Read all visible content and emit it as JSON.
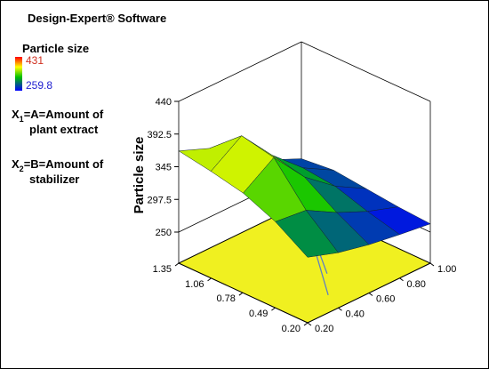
{
  "header": {
    "title": "Design-Expert® Software"
  },
  "legend": {
    "title": "Particle size",
    "max": 431,
    "min": 259.8,
    "max_color": "#d03020",
    "min_color": "#2020d0"
  },
  "factors": [
    {
      "symbol": "X",
      "sub": "1",
      "line1": "=A=Amount of",
      "line2": "plant extract"
    },
    {
      "symbol": "X",
      "sub": "2",
      "line1": "=B=Amount of",
      "line2": "stabilizer"
    }
  ],
  "chart_data": {
    "type": "surface",
    "zlabel": "Particle size",
    "colors": [
      "#0000ff",
      "#00c000",
      "#ffff00",
      "#ff0000"
    ],
    "floor_color": "#f0f020",
    "x": [
      0.2,
      0.4875,
      0.775,
      1.0625,
      1.35
    ],
    "y": [
      0.2,
      0.4,
      0.6,
      0.8,
      1.0
    ],
    "values": [
      [
        300,
        285,
        275,
        268,
        262
      ],
      [
        330,
        325,
        300,
        280,
        265
      ],
      [
        350,
        380,
        330,
        295,
        270
      ],
      [
        360,
        390,
        340,
        300,
        275
      ],
      [
        368,
        350,
        320,
        290,
        270
      ]
    ],
    "xlim": [
      0.2,
      1.35
    ],
    "ylim": [
      0.2,
      1.0
    ],
    "zlim": [
      250,
      440
    ],
    "xticks": [
      {
        "value": 0.2,
        "label": "0.20"
      },
      {
        "value": 0.49,
        "label": "0.49"
      },
      {
        "value": 0.78,
        "label": "0.78"
      },
      {
        "value": 1.06,
        "label": "1.06"
      },
      1.35
    ],
    "yticks": [
      {
        "value": 0.2,
        "label": "0.20"
      },
      {
        "value": 0.4,
        "label": "0.40"
      },
      {
        "value": 0.6,
        "label": "0.60"
      },
      {
        "value": 0.8,
        "label": "0.80"
      },
      {
        "value": 1.0,
        "label": "1.00"
      }
    ],
    "zticks": [
      250,
      297.5,
      345,
      392.5,
      440
    ]
  }
}
